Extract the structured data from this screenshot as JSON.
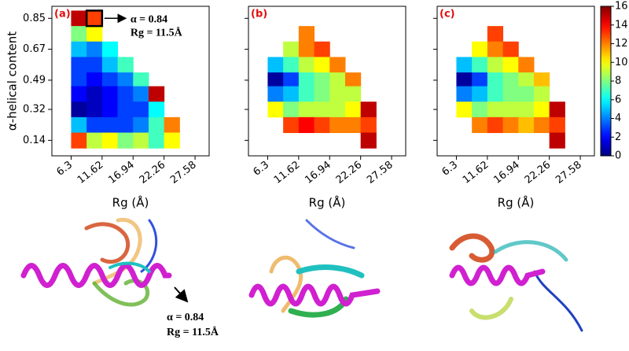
{
  "chart_data": [
    {
      "type": "heatmap",
      "title": "(a)",
      "xlabel": "Rg (Å)",
      "ylabel": "α-helical content",
      "annotations": [
        "α = 0.84",
        "Rg = 11.5Å"
      ],
      "x": [
        7.63,
        10.29,
        12.95,
        15.61,
        18.27,
        20.93,
        23.59
      ],
      "y": [
        0.85,
        0.76,
        0.67,
        0.58,
        0.49,
        0.41,
        0.32,
        0.23,
        0.14
      ],
      "values": [
        [
          15,
          13,
          null,
          null,
          null,
          null,
          null
        ],
        [
          8,
          10,
          null,
          null,
          null,
          null,
          null
        ],
        [
          5,
          4,
          6,
          null,
          null,
          null,
          null
        ],
        [
          3,
          3,
          5,
          7,
          null,
          null,
          null
        ],
        [
          3,
          2,
          3,
          4,
          7,
          null,
          null
        ],
        [
          2,
          1,
          2,
          3,
          4,
          15,
          null
        ],
        [
          0.5,
          1,
          2,
          3,
          3,
          6,
          null
        ],
        [
          5,
          3,
          3,
          3,
          4,
          7,
          12
        ],
        [
          13,
          9,
          10,
          8,
          9,
          7,
          10
        ]
      ],
      "xlim": [
        3.0,
        30.0
      ],
      "ylim": [
        0.05,
        0.92
      ],
      "xticks": [
        6.3,
        11.62,
        16.94,
        22.26,
        27.58
      ],
      "yticks": [
        0.85,
        0.67,
        0.49,
        0.32,
        0.14
      ],
      "ytick_labels": true,
      "colormap": "jet",
      "clim": [
        0,
        16
      ]
    },
    {
      "type": "heatmap",
      "title": "(b)",
      "xlabel": "Rg (Å)",
      "x": [
        7.63,
        10.29,
        12.95,
        15.61,
        18.27,
        20.93,
        23.59
      ],
      "y": [
        0.85,
        0.76,
        0.67,
        0.58,
        0.49,
        0.41,
        0.32,
        0.23,
        0.14
      ],
      "values": [
        [
          null,
          null,
          null,
          null,
          null,
          null,
          null
        ],
        [
          null,
          null,
          12,
          null,
          null,
          null,
          null
        ],
        [
          null,
          9,
          12,
          13,
          null,
          null,
          null
        ],
        [
          5,
          7,
          9,
          10,
          12,
          null,
          null
        ],
        [
          0.5,
          3,
          7,
          8,
          9,
          12,
          null
        ],
        [
          4,
          5,
          7,
          8,
          9,
          9,
          null
        ],
        [
          10,
          8,
          9,
          9,
          9,
          10,
          15
        ],
        [
          null,
          13,
          14,
          13,
          12,
          12,
          13
        ],
        [
          null,
          null,
          null,
          null,
          null,
          null,
          15
        ]
      ],
      "xlim": [
        3.0,
        30.0
      ],
      "ylim": [
        0.05,
        0.92
      ],
      "xticks": [
        6.3,
        11.62,
        16.94,
        22.26,
        27.58
      ],
      "yticks": [
        0.85,
        0.67,
        0.49,
        0.32,
        0.14
      ],
      "ytick_labels": false,
      "colormap": "jet",
      "clim": [
        0,
        16
      ]
    },
    {
      "type": "heatmap",
      "title": "(c)",
      "xlabel": "Rg (Å)",
      "x": [
        7.63,
        10.29,
        12.95,
        15.61,
        18.27,
        20.93,
        23.59
      ],
      "y": [
        0.85,
        0.76,
        0.67,
        0.58,
        0.49,
        0.41,
        0.32,
        0.23,
        0.14
      ],
      "values": [
        [
          null,
          null,
          null,
          null,
          null,
          null,
          null
        ],
        [
          null,
          null,
          13,
          null,
          null,
          null,
          null
        ],
        [
          null,
          10,
          12,
          13,
          null,
          null,
          null
        ],
        [
          5,
          7,
          9,
          10,
          12,
          null,
          null
        ],
        [
          0.5,
          3,
          7,
          8,
          9,
          11,
          null
        ],
        [
          4,
          5,
          7,
          8,
          8,
          9,
          null
        ],
        [
          10,
          8,
          9,
          9,
          9,
          10,
          15
        ],
        [
          null,
          12,
          13,
          12,
          11,
          12,
          13
        ],
        [
          null,
          null,
          null,
          null,
          null,
          null,
          15
        ]
      ],
      "xlim": [
        3.0,
        30.0
      ],
      "ylim": [
        0.05,
        0.92
      ],
      "xticks": [
        6.3,
        11.62,
        16.94,
        22.26,
        27.58
      ],
      "yticks": [
        0.85,
        0.67,
        0.49,
        0.32,
        0.14
      ],
      "ytick_labels": false,
      "colormap": "jet",
      "clim": [
        0,
        16
      ],
      "colorbar_ticks": [
        0,
        2,
        4,
        6,
        8,
        10,
        12,
        14,
        16
      ]
    }
  ],
  "structure_annotation": [
    "α = 0.84",
    "Rg = 11.5Å"
  ]
}
